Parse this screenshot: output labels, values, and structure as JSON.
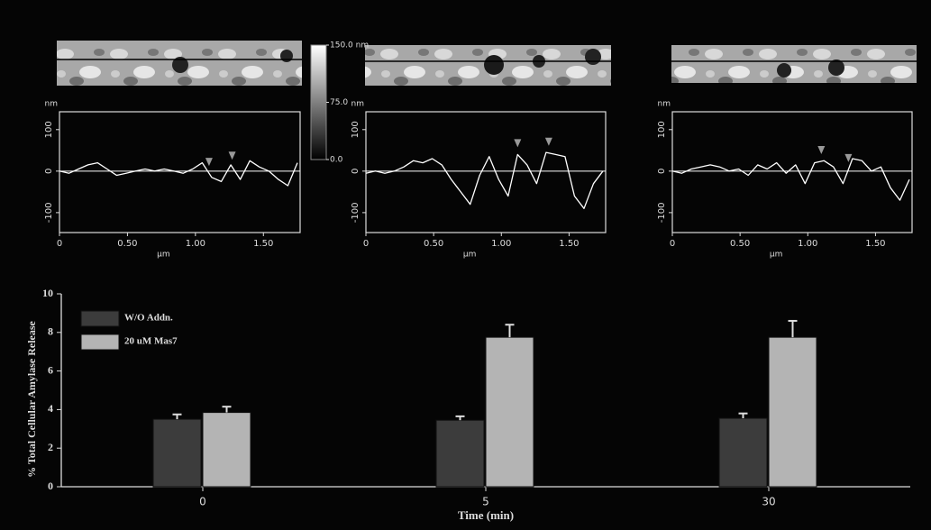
{
  "chart_data": [
    {
      "type": "line",
      "ylabel": "nm",
      "xlabel": "µm",
      "x": [
        0,
        0.07,
        0.14,
        0.21,
        0.28,
        0.35,
        0.42,
        0.49,
        0.56,
        0.63,
        0.7,
        0.77,
        0.84,
        0.91,
        0.98,
        1.05,
        1.12,
        1.19,
        1.26,
        1.33,
        1.4,
        1.47,
        1.54,
        1.61,
        1.68,
        1.75
      ],
      "values": [
        0,
        -5,
        5,
        15,
        20,
        5,
        -10,
        -5,
        0,
        5,
        0,
        5,
        0,
        -5,
        5,
        20,
        -15,
        -25,
        15,
        -20,
        25,
        10,
        0,
        -20,
        -35,
        20
      ],
      "color": "#ffffff",
      "markers_x": [
        1.1,
        1.27
      ],
      "xlim": [
        0,
        1.77
      ],
      "ylim": [
        -148,
        143
      ],
      "xticks": [
        0,
        {
          "value": 0.5,
          "label": "0.50"
        },
        {
          "value": 1,
          "label": "1.00"
        },
        {
          "value": 1.5,
          "label": "1.50"
        }
      ],
      "yticks": [
        -100,
        0,
        100
      ]
    },
    {
      "type": "colorbar",
      "ylim": [
        0,
        150
      ],
      "yticks": [
        {
          "value": 150,
          "label": "150.0 nm"
        },
        {
          "value": 75,
          "label": "75.0"
        },
        {
          "value": 0,
          "label": "0.0"
        }
      ]
    },
    {
      "type": "line",
      "ylabel": "nm",
      "xlabel": "µm",
      "x": [
        0,
        0.07,
        0.14,
        0.21,
        0.28,
        0.35,
        0.42,
        0.49,
        0.56,
        0.63,
        0.7,
        0.77,
        0.84,
        0.91,
        0.98,
        1.05,
        1.12,
        1.19,
        1.26,
        1.33,
        1.4,
        1.47,
        1.54,
        1.61,
        1.68,
        1.75
      ],
      "values": [
        -5,
        0,
        -5,
        0,
        10,
        25,
        20,
        30,
        15,
        -20,
        -50,
        -80,
        -10,
        35,
        -20,
        -60,
        40,
        15,
        -30,
        45,
        40,
        35,
        -60,
        -90,
        -30,
        0
      ],
      "color": "#ffffff",
      "markers_x": [
        1.12,
        1.35
      ],
      "xlim": [
        0,
        1.77
      ],
      "ylim": [
        -148,
        143
      ],
      "xticks": [
        0,
        {
          "value": 0.5,
          "label": "0.50"
        },
        {
          "value": 1,
          "label": "1.00"
        },
        {
          "value": 1.5,
          "label": "1.50"
        }
      ],
      "yticks": [
        -100,
        0,
        100
      ]
    },
    {
      "type": "line",
      "ylabel": "nm",
      "xlabel": "µm",
      "x": [
        0,
        0.07,
        0.14,
        0.21,
        0.28,
        0.35,
        0.42,
        0.49,
        0.56,
        0.63,
        0.7,
        0.77,
        0.84,
        0.91,
        0.98,
        1.05,
        1.12,
        1.19,
        1.26,
        1.33,
        1.4,
        1.47,
        1.54,
        1.61,
        1.68,
        1.75
      ],
      "values": [
        0,
        -5,
        5,
        10,
        15,
        10,
        0,
        5,
        -10,
        15,
        5,
        20,
        -5,
        15,
        -30,
        20,
        25,
        10,
        -30,
        30,
        25,
        0,
        10,
        -40,
        -70,
        -20
      ],
      "color": "#ffffff",
      "markers_x": [
        1.1,
        1.3
      ],
      "xlim": [
        0,
        1.77
      ],
      "ylim": [
        -148,
        143
      ],
      "xticks": [
        0,
        {
          "value": 0.5,
          "label": "0.50"
        },
        {
          "value": 1,
          "label": "1.00"
        },
        {
          "value": 1.5,
          "label": "1.50"
        }
      ],
      "yticks": [
        -100,
        0,
        100
      ]
    },
    {
      "type": "bar",
      "xlabel": "Time (min)",
      "ylabel": "% Total Cellular Amylase Release",
      "categories": [
        "0",
        "5",
        "30"
      ],
      "series": [
        {
          "name": "W/O Addn.",
          "color": "#3c3c3c",
          "values": [
            3.5,
            3.45,
            3.55
          ],
          "errors": [
            0.25,
            0.2,
            0.25
          ]
        },
        {
          "name": "20 uM Mas7",
          "color": "#b4b4b4",
          "values": [
            3.85,
            7.75,
            7.75
          ],
          "errors": [
            0.3,
            0.65,
            0.85
          ]
        }
      ],
      "ylim": [
        0,
        10
      ],
      "yticks": [
        0,
        2,
        4,
        6,
        8,
        10
      ]
    }
  ]
}
